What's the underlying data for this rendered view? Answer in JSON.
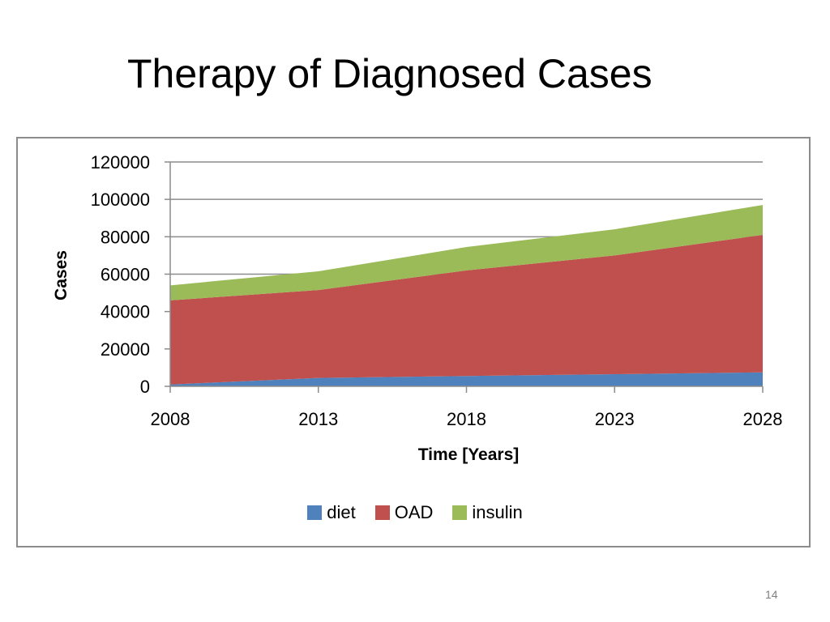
{
  "slide": {
    "title": "Therapy of Diagnosed Cases",
    "page_number": "14"
  },
  "chart_data": {
    "type": "area",
    "stacked": true,
    "title": "",
    "xlabel": "Time [Years]",
    "ylabel": "Cases",
    "x": [
      2008,
      2013,
      2018,
      2023,
      2028
    ],
    "xticks": [
      "2008",
      "2013",
      "2018",
      "2023",
      "2028"
    ],
    "yticks": [
      "0",
      "20000",
      "40000",
      "60000",
      "80000",
      "100000",
      "120000"
    ],
    "ylim": [
      0,
      120000
    ],
    "grid": true,
    "legend_position": "bottom",
    "series": [
      {
        "name": "diet",
        "color": "#4f81bd",
        "values": [
          1000,
          4500,
          5500,
          6500,
          7500
        ]
      },
      {
        "name": "OAD",
        "color": "#c0504d",
        "values": [
          45000,
          47000,
          56500,
          63500,
          73500
        ]
      },
      {
        "name": "insulin",
        "color": "#9bbb59",
        "values": [
          8000,
          10000,
          12500,
          14000,
          16000
        ]
      }
    ]
  }
}
